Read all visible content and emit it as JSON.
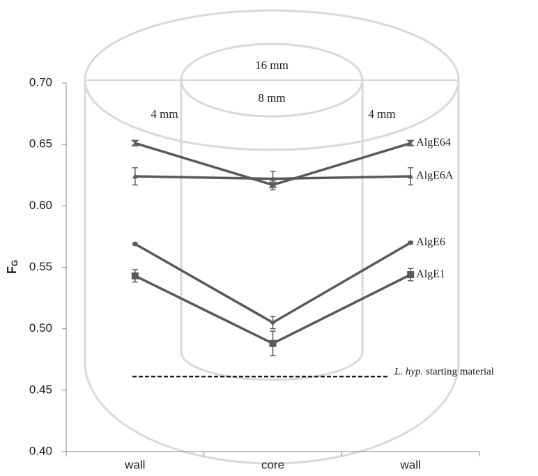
{
  "chart_data": {
    "type": "line",
    "ylabel": "F",
    "ylabel_sub": "G",
    "categories": [
      "wall",
      "core",
      "wall"
    ],
    "ylim": [
      0.4,
      0.7
    ],
    "yticks": [
      {
        "value": 0.4,
        "label": "0.40"
      },
      {
        "value": 0.45,
        "label": "0.45"
      },
      {
        "value": 0.5,
        "label": "0.50"
      },
      {
        "value": 0.55,
        "label": "0.55"
      },
      {
        "value": 0.6,
        "label": "0.60"
      },
      {
        "value": 0.65,
        "label": "0.65"
      },
      {
        "value": 0.7,
        "label": "0.70"
      }
    ],
    "series": [
      {
        "name": "AlgE64",
        "color": "#595959",
        "marker": "hourglass",
        "values": [
          0.651,
          0.617,
          0.651
        ],
        "errors": [
          0.002,
          0.004,
          0.002
        ]
      },
      {
        "name": "AlgE6A",
        "color": "#595959",
        "marker": "triangle",
        "values": [
          0.624,
          0.622,
          0.624
        ],
        "errors": [
          0.007,
          0.006,
          0.007
        ]
      },
      {
        "name": "AlgE6",
        "color": "#595959",
        "marker": "diamond",
        "values": [
          0.569,
          0.505,
          0.57
        ],
        "errors": [
          0.001,
          0.005,
          0.001
        ]
      },
      {
        "name": "AlgE1",
        "color": "#595959",
        "marker": "square",
        "values": [
          0.543,
          0.488,
          0.544
        ],
        "errors": [
          0.005,
          0.01,
          0.005
        ]
      }
    ],
    "reference_line": {
      "value": 0.461,
      "label_italic": "L. hyp.",
      "label": "starting material",
      "color": "#000000"
    },
    "annotations": [
      "16 mm",
      "8 mm",
      "4 mm",
      "4 mm"
    ]
  }
}
